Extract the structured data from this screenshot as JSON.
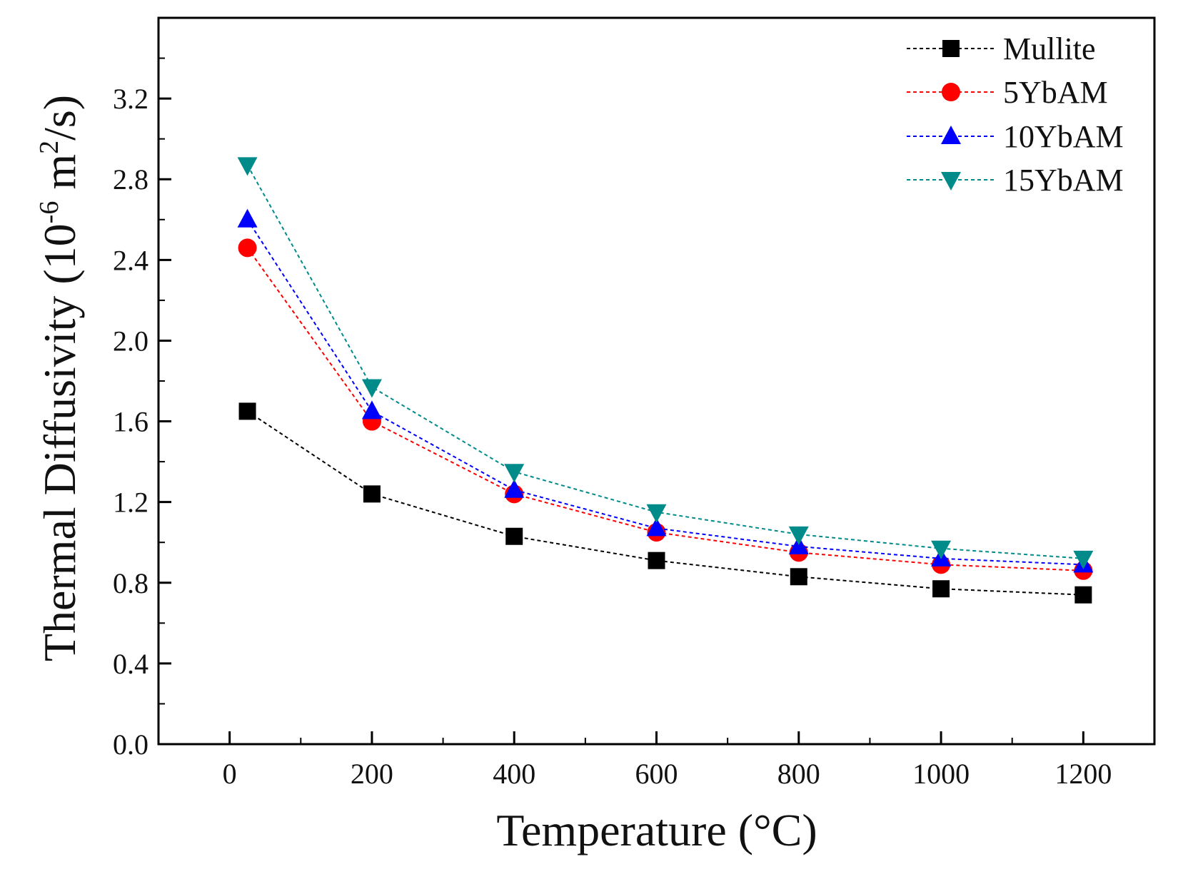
{
  "chart_data": {
    "type": "line",
    "title": "",
    "xlabel": "Temperature (°C)",
    "ylabel_main": "Thermal Diffusivity (10",
    "ylabel_exp": "-6",
    "ylabel_unit": " m",
    "ylabel_unit_exp": "2",
    "ylabel_end": "/s)",
    "xlim": [
      -100,
      1300
    ],
    "ylim": [
      0.0,
      3.6
    ],
    "x_ticks": [
      0,
      200,
      400,
      600,
      800,
      1000,
      1200
    ],
    "x_tick_labels": [
      "0",
      "200",
      "400",
      "600",
      "800",
      "1000",
      "1200"
    ],
    "y_ticks": [
      0.0,
      0.4,
      0.8,
      1.2,
      1.6,
      2.0,
      2.4,
      2.8,
      3.2
    ],
    "y_tick_labels": [
      "0.0",
      "0.4",
      "0.8",
      "1.2",
      "1.6",
      "2.0",
      "2.4",
      "2.8",
      "3.2"
    ],
    "legend_position": "top-right",
    "grid": false,
    "x": [
      25,
      200,
      400,
      600,
      800,
      1000,
      1200
    ],
    "series": [
      {
        "name": "Mullite",
        "color": "#000000",
        "marker": "square",
        "values": [
          1.65,
          1.24,
          1.03,
          0.91,
          0.83,
          0.77,
          0.74
        ]
      },
      {
        "name": "5YbAM",
        "color": "#ff0000",
        "marker": "circle",
        "values": [
          2.46,
          1.6,
          1.24,
          1.05,
          0.95,
          0.89,
          0.86
        ]
      },
      {
        "name": "10YbAM",
        "color": "#0000ff",
        "marker": "triangle-up",
        "values": [
          2.6,
          1.65,
          1.26,
          1.07,
          0.98,
          0.92,
          0.89
        ]
      },
      {
        "name": "15YbAM",
        "color": "#008b8b",
        "marker": "triangle-down",
        "values": [
          2.87,
          1.77,
          1.35,
          1.15,
          1.04,
          0.97,
          0.92
        ]
      }
    ]
  }
}
